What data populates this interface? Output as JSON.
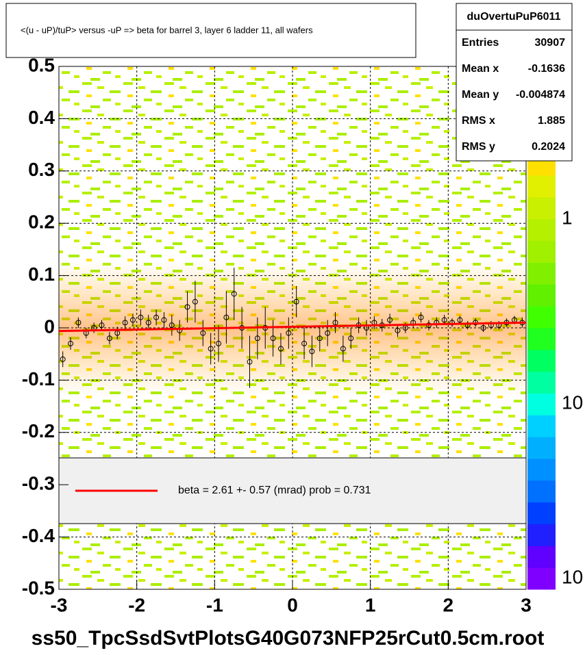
{
  "chart_data": {
    "type": "profile",
    "title": "<(u - uP)/tuP> versus  -uP => beta for barrel 3, layer 6 ladder 11, all wafers",
    "footer": "ss50_TpcSsdSvtPlotsG40G073NFP25rCut0.5cm.root",
    "xlim": [
      -3,
      3
    ],
    "xticks": [
      -3,
      -2,
      -1,
      0,
      1,
      2,
      3
    ],
    "ylim": [
      -0.5,
      0.5
    ],
    "yticks": [
      -0.5,
      -0.4,
      -0.3,
      -0.2,
      -0.1,
      0,
      0.1,
      0.2,
      0.3,
      0.4,
      0.5
    ],
    "grid": true,
    "stats": {
      "name": "duOvertuPuP6011",
      "rows": [
        {
          "label": "Entries",
          "value": 30907
        },
        {
          "label": "Mean x",
          "value": -0.1636
        },
        {
          "label": "Mean y",
          "value": -0.004874
        },
        {
          "label": "RMS x",
          "value": 1.885
        },
        {
          "label": "RMS y",
          "value": 0.2024
        }
      ]
    },
    "colorbar_labels": [
      "1",
      "10",
      "10"
    ],
    "fit": {
      "color": "#ff0000",
      "x": [
        -3,
        3
      ],
      "y": [
        -0.006,
        0.01
      ],
      "label": "beta =    2.61 +-  0.57 (mrad) prob = 0.731"
    },
    "series": [
      {
        "color": "#000000",
        "x": [
          -2.95,
          -2.85,
          -2.75,
          -2.65,
          -2.55,
          -2.45,
          -2.35,
          -2.25,
          -2.15,
          -2.05,
          -1.95,
          -1.85,
          -1.75,
          -1.65,
          -1.55,
          -1.45,
          -1.35,
          -1.25,
          -1.15,
          -1.05,
          -0.95,
          -0.85,
          -0.75,
          -0.65,
          -0.55,
          -0.45,
          -0.35,
          -0.25,
          -0.15,
          -0.05,
          0.05,
          0.15,
          0.25,
          0.35,
          0.45,
          0.55,
          0.65,
          0.75,
          0.85,
          0.95,
          1.05,
          1.15,
          1.25,
          1.35,
          1.45,
          1.55,
          1.65,
          1.75,
          1.85,
          1.95,
          2.05,
          2.15,
          2.25,
          2.35,
          2.45,
          2.55,
          2.65,
          2.75,
          2.85,
          2.95
        ],
        "values": [
          -0.06,
          -0.03,
          0.01,
          -0.01,
          0.0,
          0.005,
          -0.02,
          -0.01,
          0.01,
          0.015,
          0.02,
          0.01,
          0.02,
          0.015,
          0.005,
          -0.005,
          0.04,
          0.05,
          -0.01,
          -0.04,
          -0.03,
          0.02,
          0.065,
          0.0,
          -0.065,
          -0.02,
          0.0,
          -0.02,
          -0.04,
          -0.01,
          0.05,
          -0.03,
          -0.045,
          -0.02,
          -0.01,
          0.01,
          -0.04,
          -0.02,
          0.005,
          0.0,
          0.01,
          0.005,
          0.015,
          -0.005,
          0.0,
          0.01,
          0.02,
          0.005,
          0.01,
          0.015,
          0.01,
          0.015,
          0.005,
          0.01,
          0.0,
          0.005,
          0.005,
          0.01,
          0.015,
          0.01
        ],
        "errors": [
          0.015,
          0.012,
          0.01,
          0.01,
          0.01,
          0.01,
          0.012,
          0.012,
          0.012,
          0.012,
          0.015,
          0.015,
          0.015,
          0.015,
          0.02,
          0.02,
          0.03,
          0.04,
          0.025,
          0.03,
          0.035,
          0.05,
          0.05,
          0.04,
          0.05,
          0.04,
          0.04,
          0.035,
          0.03,
          0.03,
          0.03,
          0.03,
          0.03,
          0.025,
          0.025,
          0.02,
          0.025,
          0.02,
          0.015,
          0.015,
          0.012,
          0.012,
          0.012,
          0.012,
          0.01,
          0.01,
          0.01,
          0.01,
          0.01,
          0.01,
          0.008,
          0.008,
          0.008,
          0.008,
          0.008,
          0.008,
          0.008,
          0.008,
          0.008,
          0.01
        ]
      }
    ]
  }
}
